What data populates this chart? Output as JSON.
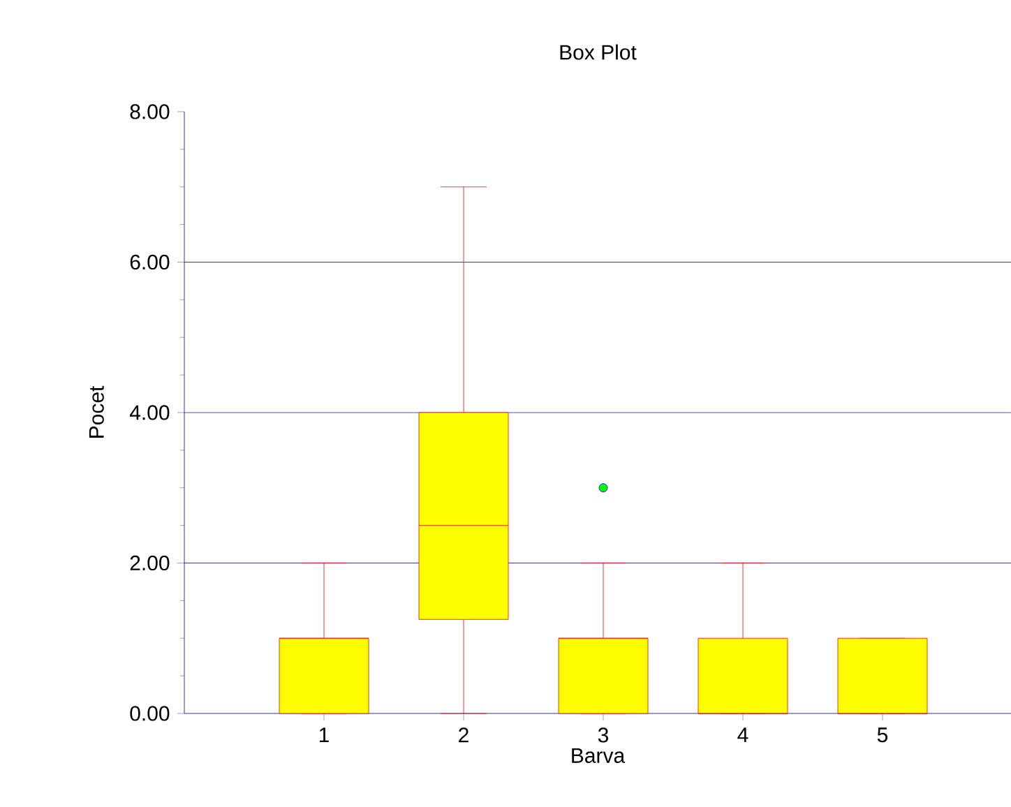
{
  "chart_data": {
    "type": "box",
    "title": "Box Plot",
    "xlabel": "Barva",
    "ylabel": "Pocet",
    "categories": [
      "1",
      "2",
      "3",
      "4",
      "5"
    ],
    "boxes": [
      {
        "low": 0,
        "q1": 0,
        "median": 1,
        "q3": 1,
        "high": 2
      },
      {
        "low": 0,
        "q1": 1.25,
        "median": 2.5,
        "q3": 4,
        "high": 7
      },
      {
        "low": 0,
        "q1": 0,
        "median": 1,
        "q3": 1,
        "high": 2,
        "outliers": [
          3
        ]
      },
      {
        "low": 0,
        "q1": 0,
        "median": 0,
        "q3": 1,
        "high": 2
      },
      {
        "low": 0,
        "q1": 0,
        "median": 0,
        "q3": 1,
        "high": 1
      }
    ],
    "color": "#ffff00",
    "ylim": [
      0,
      8
    ],
    "yticks": [
      {
        "value": 0,
        "label": "0.00"
      },
      {
        "value": 2,
        "label": "2.00"
      },
      {
        "value": 4,
        "label": "4.00"
      },
      {
        "value": 6,
        "label": "6.00"
      },
      {
        "value": 8,
        "label": "8.00"
      }
    ],
    "grid": "y"
  }
}
